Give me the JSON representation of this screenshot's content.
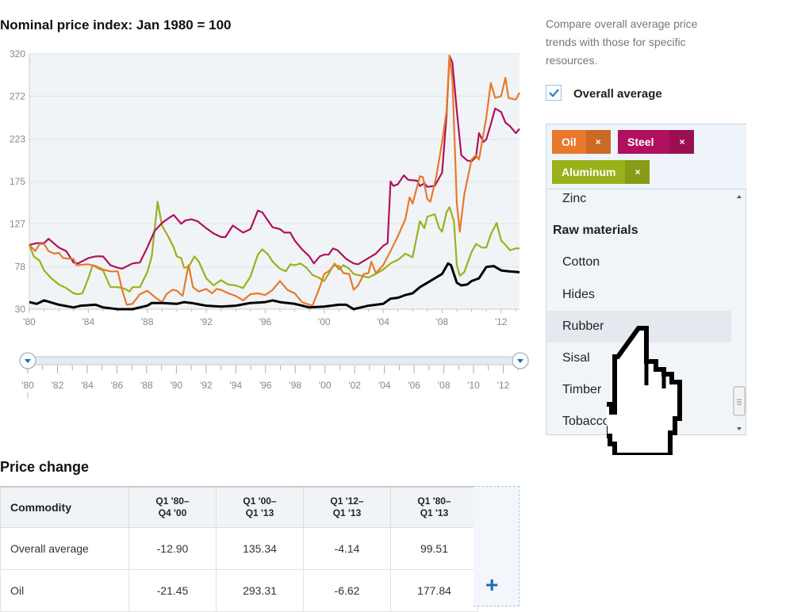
{
  "chart_data": {
    "type": "line",
    "title": "Nominal price index: Jan 1980 = 100",
    "ylim": [
      30,
      320
    ],
    "yticks": [
      30,
      78,
      127,
      175,
      223,
      272,
      320
    ],
    "xlim": [
      1980,
      2013.25
    ],
    "xtick_labels": [
      "'80",
      "'84",
      "'88",
      "'92",
      "'96",
      "'00",
      "'04",
      "'08",
      "'12"
    ],
    "grid": true,
    "series": [
      {
        "name": "Overall average",
        "color": "#000000",
        "x": [
          1980,
          1980.5,
          1981,
          1982,
          1983,
          1983.5,
          1984.5,
          1985,
          1986,
          1987,
          1988,
          1988.3,
          1989,
          1990,
          1990.5,
          1991,
          1992,
          1993,
          1994,
          1995,
          1996,
          1996.5,
          1997,
          1998,
          1999,
          2000,
          2001,
          2001.5,
          2002,
          2003,
          2004,
          2004.5,
          2005,
          2005.5,
          2006,
          2006.5,
          2007,
          2007.5,
          2008,
          2008.4,
          2008.6,
          2009,
          2009.3,
          2009.7,
          2010,
          2010.5,
          2011,
          2011.5,
          2012,
          2012.5,
          2013.25
        ],
        "y": [
          38,
          36,
          40,
          35,
          32,
          34,
          35,
          32,
          30,
          30,
          34,
          37,
          37,
          36,
          38,
          37,
          34,
          33,
          34,
          37,
          38,
          40,
          38,
          36,
          32,
          33,
          35,
          35,
          30,
          34,
          36,
          42,
          43,
          46,
          48,
          55,
          60,
          65,
          70,
          82,
          80,
          60,
          57,
          58,
          62,
          65,
          78,
          79,
          74,
          73,
          72
        ]
      },
      {
        "name": "Oil",
        "color": "#e8792b",
        "x": [
          1980,
          1980.4,
          1980.7,
          1981,
          1981.3,
          1981.7,
          1982,
          1982.3,
          1983,
          1983.2,
          1984,
          1984.5,
          1985,
          1985.5,
          1986,
          1986.3,
          1986.6,
          1987,
          1987.5,
          1988,
          1988.5,
          1989,
          1989.3,
          1989.7,
          1990,
          1990.4,
          1990.8,
          1991.1,
          1991.5,
          1992,
          1992.4,
          1992.7,
          1993,
          1993.5,
          1994,
          1994.5,
          1995,
          1995.5,
          1996,
          1996.5,
          1997,
          1997.5,
          1998,
          1998.5,
          1999,
          1999.2,
          1999.7,
          2000,
          2000.3,
          2000.7,
          2001,
          2001.3,
          2001.7,
          2002,
          2002.3,
          2002.7,
          2003,
          2003.2,
          2003.5,
          2004,
          2004.5,
          2005,
          2005.5,
          2005.8,
          2006,
          2006.5,
          2006.7,
          2007,
          2007.2,
          2007.6,
          2008,
          2008.3,
          2008.5,
          2008.7,
          2009,
          2009.2,
          2009.5,
          2010,
          2010.3,
          2010.5,
          2011,
          2011.3,
          2011.6,
          2012,
          2012.3,
          2012.5,
          2013,
          2013.25
        ],
        "y": [
          103,
          96,
          104,
          104,
          96,
          93,
          94,
          88,
          87,
          80,
          81,
          79,
          75,
          73,
          73,
          52,
          35,
          36,
          47,
          51,
          44,
          38,
          47,
          52,
          51,
          45,
          80,
          55,
          50,
          53,
          48,
          53,
          52,
          48,
          45,
          40,
          47,
          48,
          46,
          52,
          62,
          52,
          48,
          38,
          35,
          34,
          55,
          70,
          73,
          80,
          79,
          71,
          70,
          52,
          57,
          70,
          71,
          84,
          71,
          80,
          96,
          113,
          132,
          157,
          150,
          181,
          180,
          155,
          152,
          180,
          220,
          255,
          318,
          290,
          150,
          118,
          160,
          200,
          205,
          200,
          248,
          287,
          270,
          272,
          293,
          270,
          268,
          276
        ]
      },
      {
        "name": "Steel",
        "color": "#b0105e",
        "x": [
          1980,
          1980.5,
          1981,
          1981.3,
          1982,
          1982.5,
          1983,
          1983.3,
          1984,
          1984.5,
          1985,
          1985.5,
          1986,
          1986.3,
          1987,
          1987.5,
          1988,
          1988.5,
          1989,
          1989.5,
          1989.8,
          1990.3,
          1990.6,
          1991,
          1991.4,
          1992,
          1992.5,
          1993,
          1993.3,
          1993.8,
          1994.5,
          1995,
          1995.5,
          1995.8,
          1996.5,
          1997,
          1997.3,
          1997.7,
          1998,
          1998.5,
          1999,
          1999.3,
          1999.7,
          2000,
          2000.3,
          2000.6,
          2000.9,
          2001.5,
          2002,
          2002.3,
          2003,
          2003.5,
          2004,
          2004.3,
          2004.5,
          2004.7,
          2005,
          2005.4,
          2005.7,
          2006.3,
          2006.5,
          2006.8,
          2007,
          2007.5,
          2008,
          2008.3,
          2008.5,
          2008.7,
          2009,
          2009.3,
          2009.7,
          2010,
          2010.3,
          2010.5,
          2010.8,
          2011,
          2011.3,
          2011.6,
          2012,
          2012.3,
          2012.6,
          2013,
          2013.25
        ],
        "y": [
          103,
          105,
          105,
          110,
          100,
          96,
          83,
          82,
          88,
          90,
          90,
          80,
          77,
          76,
          82,
          83,
          100,
          119,
          128,
          134,
          137,
          127,
          131,
          132,
          130,
          122,
          116,
          112,
          112,
          125,
          117,
          121,
          142,
          140,
          123,
          121,
          117,
          117,
          108,
          98,
          90,
          82,
          90,
          92,
          92,
          99,
          97,
          87,
          82,
          81,
          88,
          93,
          102,
          105,
          175,
          170,
          172,
          182,
          177,
          176,
          170,
          173,
          169,
          170,
          185,
          250,
          318,
          310,
          255,
          205,
          199,
          198,
          203,
          230,
          220,
          223,
          240,
          258,
          254,
          242,
          238,
          230,
          235
        ]
      },
      {
        "name": "Aluminum",
        "color": "#9bb11a",
        "x": [
          1980,
          1980.3,
          1980.7,
          1981,
          1981.5,
          1982,
          1982.5,
          1983,
          1983.3,
          1983.6,
          1984,
          1984.3,
          1984.7,
          1985,
          1985.5,
          1986,
          1986.5,
          1986.8,
          1987,
          1987.5,
          1988,
          1988.3,
          1988.7,
          1989,
          1989.5,
          1989.8,
          1990,
          1990.3,
          1990.5,
          1990.8,
          1991.2,
          1991.5,
          1992,
          1992.5,
          1993,
          1993.5,
          1994,
          1994.5,
          1995,
          1995.5,
          1995.8,
          1996.2,
          1996.5,
          1997,
          1997.4,
          1997.7,
          1998,
          1998.4,
          1998.8,
          1999.2,
          1999.6,
          2000,
          2000.3,
          2000.7,
          2001,
          2001.3,
          2001.7,
          2002,
          2002.5,
          2003,
          2003.5,
          2004,
          2004.5,
          2005,
          2005.5,
          2006,
          2006.5,
          2006.8,
          2007,
          2007.5,
          2007.8,
          2008,
          2008.3,
          2008.5,
          2008.8,
          2009,
          2009.2,
          2009.5,
          2010,
          2010.3,
          2010.7,
          2011,
          2011.3,
          2011.7,
          2012,
          2012.3,
          2012.6,
          2013,
          2013.25
        ],
        "y": [
          103,
          90,
          85,
          74,
          65,
          58,
          54,
          48,
          47,
          48,
          65,
          80,
          76,
          74,
          55,
          55,
          53,
          50,
          55,
          55,
          72,
          90,
          152,
          125,
          110,
          100,
          90,
          88,
          77,
          78,
          90,
          84,
          65,
          57,
          63,
          58,
          57,
          54,
          67,
          92,
          98,
          92,
          84,
          76,
          73,
          81,
          80,
          82,
          77,
          69,
          66,
          62,
          70,
          82,
          75,
          80,
          76,
          70,
          68,
          66,
          70,
          75,
          82,
          86,
          93,
          89,
          130,
          122,
          135,
          138,
          122,
          118,
          140,
          146,
          130,
          80,
          68,
          72,
          95,
          104,
          100,
          100,
          115,
          128,
          108,
          103,
          97,
          99,
          99
        ]
      }
    ]
  },
  "slider": {
    "labels": [
      "'80",
      "'82",
      "'84",
      "'86",
      "'88",
      "'90",
      "'92",
      "'94",
      "'96",
      "'98",
      "'00",
      "'02",
      "'04",
      "'06",
      "'08",
      "'10",
      "'12"
    ]
  },
  "price_change": {
    "heading": "Price change",
    "headers": [
      [
        "Commodity",
        ""
      ],
      [
        "Q1 '80–",
        "Q4 '00"
      ],
      [
        "Q1 '00–",
        "Q1 '13"
      ],
      [
        "Q1 '12–",
        "Q1 '13"
      ],
      [
        "Q1 '80–",
        "Q1 '13"
      ]
    ],
    "rows": [
      [
        "Overall average",
        "-12.90",
        "135.34",
        "-4.14",
        "99.51"
      ],
      [
        "Oil",
        "-21.45",
        "293.31",
        "-6.62",
        "177.84"
      ]
    ],
    "add_label": "+"
  },
  "panel": {
    "intro": "Compare overall average price trends with those for specific resources.",
    "checkbox_label": "Overall average",
    "checkbox_checked": true,
    "tags": [
      {
        "label": "Oil",
        "color": "#e8792b"
      },
      {
        "label": "Steel",
        "color": "#b0105e"
      },
      {
        "label": "Aluminum",
        "color": "#9bb11a"
      }
    ],
    "remove_glyph": "×",
    "list": [
      {
        "label": "Zinc",
        "group": false
      },
      {
        "label": "Raw materials",
        "group": true
      },
      {
        "label": "Cotton",
        "group": false
      },
      {
        "label": "Hides",
        "group": false
      },
      {
        "label": "Rubber",
        "group": false,
        "hovered": true
      },
      {
        "label": "Sisal",
        "group": false
      },
      {
        "label": "Timber",
        "group": false
      },
      {
        "label": "Tobacco",
        "group": false
      }
    ]
  }
}
